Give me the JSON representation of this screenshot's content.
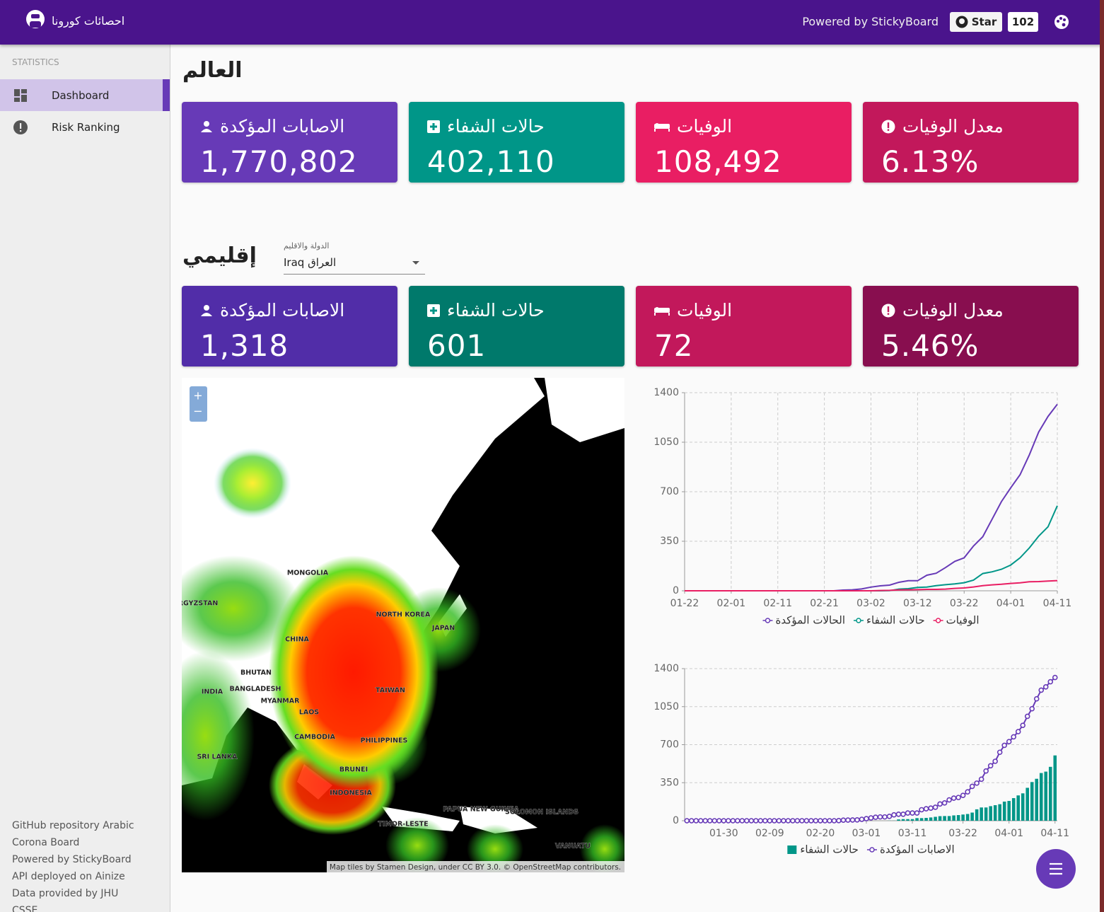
{
  "header": {
    "title": "احصائات كورونا",
    "powered_by": "Powered by StickyBoard",
    "star": "Star",
    "star_count": "102"
  },
  "sidebar": {
    "section": "STATISTICS",
    "items": [
      "Dashboard",
      "Risk Ranking"
    ],
    "footer": [
      "GitHub repository Arabic Corona Board",
      "Powered by StickyBoard",
      "API deployed on Ainize",
      "Data provided by JHU CSSE"
    ]
  },
  "world": {
    "title": "العالم",
    "cards": [
      {
        "label": "الاصابات المؤكدة",
        "value": "1,770,802"
      },
      {
        "label": "حالات الشفاء",
        "value": "402,110"
      },
      {
        "label": "الوفيات",
        "value": "108,492"
      },
      {
        "label": "معدل الوفيات",
        "value": "6.13%"
      }
    ]
  },
  "region": {
    "title": "إقليمي",
    "select_label": "الدولة والاقليم",
    "select_value": "Iraq العراق",
    "cards": [
      {
        "label": "الاصابات المؤكدة",
        "value": "1,318"
      },
      {
        "label": "حالات الشفاء",
        "value": "601"
      },
      {
        "label": "الوفيات",
        "value": "72"
      },
      {
        "label": "معدل الوفيات",
        "value": "5.46%"
      }
    ]
  },
  "map": {
    "zoom_in": "+",
    "zoom_out": "−",
    "labels": [
      "MONGOLIA",
      "CHINA",
      "NORTH KOREA",
      "JAPAN",
      "BHUTAN",
      "INDIA",
      "BANGLADESH",
      "MYANMAR",
      "LAOS",
      "TAIWAN",
      "CAMBODIA",
      "PHILIPPINES",
      "SRI LANKA",
      "BRUNEI",
      "INDONESIA",
      "TIMOR-LESTE",
      "PAPUA NEW GUINEA",
      "SOLOMON ISLANDS",
      "VANUATU",
      "RGYZSTAN"
    ],
    "attribution": "Map tiles by Stamen Design, under CC BY 3.0. © OpenStreetMap contributors."
  },
  "charts": [
    {
      "type": "line",
      "grid": true,
      "ylim": [
        0,
        1400
      ],
      "yticks": [
        0,
        350,
        700,
        1050,
        1400
      ],
      "x": [
        "01-22",
        null,
        null,
        null,
        null,
        "02-01",
        null,
        null,
        null,
        null,
        "02-11",
        null,
        null,
        null,
        null,
        "02-21",
        null,
        null,
        null,
        null,
        "03-02",
        null,
        null,
        null,
        null,
        "03-12",
        null,
        null,
        null,
        null,
        "03-22",
        null,
        null,
        null,
        null,
        "04-01",
        null,
        null,
        null,
        null,
        "04-11"
      ],
      "series": [
        {
          "name": "الحالات المؤكدة",
          "color": "#673ab7",
          "values": [
            0,
            0,
            0,
            0,
            0,
            0,
            0,
            0,
            0,
            0,
            0,
            0,
            0,
            0,
            0,
            0,
            0,
            5,
            7,
            13,
            26,
            35,
            40,
            60,
            71,
            71,
            110,
            124,
            164,
            208,
            233,
            316,
            382,
            506,
            630,
            728,
            820,
            961,
            1122,
            1232,
            1318
          ]
        },
        {
          "name": "حالات الشفاء",
          "color": "#009688",
          "values": [
            0,
            0,
            0,
            0,
            0,
            0,
            0,
            0,
            0,
            0,
            0,
            0,
            0,
            0,
            0,
            0,
            0,
            0,
            0,
            0,
            0,
            0,
            1,
            12,
            15,
            24,
            26,
            36,
            43,
            49,
            57,
            75,
            122,
            134,
            152,
            182,
            233,
            303,
            386,
            452,
            601
          ]
        },
        {
          "name": "الوفيات",
          "color": "#e91e63",
          "values": [
            0,
            0,
            0,
            0,
            0,
            0,
            0,
            0,
            0,
            0,
            0,
            0,
            0,
            0,
            0,
            0,
            0,
            0,
            0,
            0,
            0,
            2,
            3,
            6,
            7,
            8,
            10,
            10,
            12,
            17,
            20,
            27,
            36,
            42,
            46,
            52,
            56,
            64,
            65,
            69,
            72
          ]
        }
      ]
    },
    {
      "type": "bar",
      "grid": true,
      "ylim": [
        0,
        1400
      ],
      "yticks": [
        0,
        350,
        700,
        1050,
        1400
      ],
      "x": [
        null,
        null,
        null,
        null,
        null,
        null,
        null,
        null,
        "01-30",
        null,
        null,
        null,
        null,
        null,
        null,
        null,
        null,
        null,
        "02-09",
        null,
        null,
        null,
        null,
        null,
        null,
        null,
        null,
        null,
        null,
        "02-20",
        null,
        null,
        null,
        null,
        null,
        null,
        null,
        null,
        null,
        "03-01",
        null,
        null,
        null,
        null,
        null,
        null,
        null,
        null,
        null,
        "03-11",
        null,
        null,
        null,
        null,
        null,
        null,
        null,
        null,
        null,
        null,
        "03-22",
        null,
        null,
        null,
        null,
        null,
        null,
        null,
        null,
        null,
        "04-01",
        null,
        null,
        null,
        null,
        null,
        null,
        null,
        null,
        null,
        "04-11"
      ],
      "series": [
        {
          "name": "حالات الشفاء",
          "type": "bar",
          "color": "#009688",
          "values": [
            0,
            0,
            0,
            0,
            0,
            0,
            0,
            0,
            0,
            0,
            0,
            0,
            0,
            0,
            0,
            0,
            0,
            0,
            0,
            0,
            0,
            0,
            0,
            0,
            0,
            0,
            0,
            0,
            0,
            0,
            0,
            0,
            0,
            0,
            0,
            0,
            0,
            0,
            0,
            0,
            0,
            0,
            0,
            0,
            1,
            1,
            12,
            15,
            15,
            15,
            24,
            24,
            26,
            30,
            36,
            42,
            43,
            43,
            49,
            52,
            57,
            62,
            75,
            105,
            122,
            122,
            134,
            143,
            152,
            176,
            182,
            208,
            233,
            252,
            303,
            356,
            386,
            439,
            452,
            496,
            601
          ]
        },
        {
          "name": "الاصابات المؤكدة",
          "type": "line",
          "markers": true,
          "color": "#673ab7",
          "values": [
            0,
            0,
            0,
            0,
            0,
            0,
            0,
            0,
            0,
            0,
            0,
            0,
            0,
            0,
            0,
            0,
            0,
            0,
            0,
            0,
            0,
            0,
            0,
            0,
            0,
            0,
            0,
            0,
            0,
            0,
            0,
            0,
            0,
            1,
            5,
            6,
            7,
            8,
            13,
            19,
            26,
            32,
            35,
            35,
            40,
            54,
            60,
            60,
            71,
            71,
            71,
            101,
            110,
            116,
            124,
            154,
            164,
            192,
            208,
            214,
            233,
            266,
            316,
            346,
            382,
            458,
            506,
            547,
            630,
            694,
            728,
            772,
            820,
            878,
            961,
            1031,
            1122,
            1202,
            1232,
            1279,
            1318
          ]
        }
      ]
    }
  ]
}
